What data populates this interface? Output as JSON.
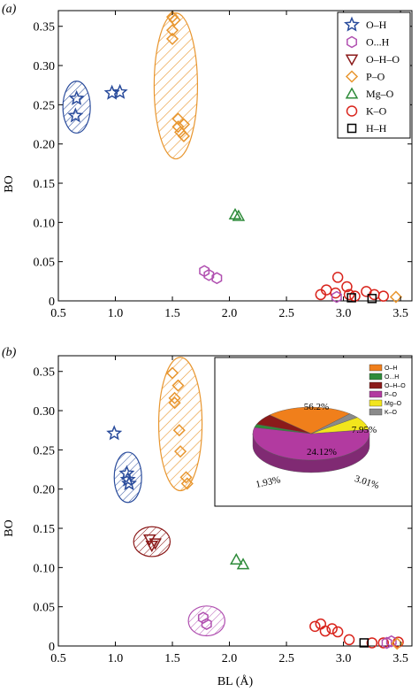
{
  "figure": {
    "colors": {
      "O–H": "#2a4c9c",
      "O...H": "#b04fb0",
      "O–H–O": "#8b1a1a",
      "P–O": "#e8962f",
      "Mg–O": "#2e8b3a",
      "K–O": "#d9241c",
      "H–H": "#000000"
    }
  },
  "chart_data": [
    {
      "panel_label": "(a)",
      "type": "scatter",
      "xlabel": "",
      "ylabel": "BO",
      "xlim": [
        0.5,
        3.6
      ],
      "ylim": [
        0,
        0.37
      ],
      "xticks": [
        "0.5",
        "1.0",
        "1.5",
        "2.0",
        "2.5",
        "3.0",
        "3.5"
      ],
      "yticks": [
        "0",
        "0.05",
        "0.10",
        "0.15",
        "0.20",
        "0.25",
        "0.30",
        "0.35"
      ],
      "legend": {
        "position": "top-right",
        "entries": [
          {
            "label": "O–H",
            "marker": "star"
          },
          {
            "label": "O...H",
            "marker": "hexagon"
          },
          {
            "label": "O–H–O",
            "marker": "triangle-down"
          },
          {
            "label": "P–O",
            "marker": "diamond"
          },
          {
            "label": "Mg–O",
            "marker": "triangle-up"
          },
          {
            "label": "K–O",
            "marker": "circle"
          },
          {
            "label": "H–H",
            "marker": "square"
          }
        ]
      },
      "series": [
        {
          "name": "O–H",
          "marker": "star",
          "points": [
            [
              0.66,
              0.258
            ],
            [
              0.65,
              0.236
            ],
            [
              0.97,
              0.265
            ],
            [
              1.04,
              0.266
            ]
          ]
        },
        {
          "name": "P–O",
          "marker": "diamond",
          "points": [
            [
              1.5,
              0.362
            ],
            [
              1.52,
              0.358
            ],
            [
              1.5,
              0.345
            ],
            [
              1.5,
              0.334
            ],
            [
              1.55,
              0.232
            ],
            [
              1.55,
              0.222
            ],
            [
              1.6,
              0.225
            ],
            [
              1.57,
              0.215
            ],
            [
              1.6,
              0.21
            ]
          ]
        },
        {
          "name": "Mg–O",
          "marker": "triangle-up",
          "points": [
            [
              2.05,
              0.11
            ],
            [
              2.08,
              0.108
            ]
          ]
        },
        {
          "name": "O...H",
          "marker": "hexagon",
          "points": [
            [
              1.78,
              0.038
            ],
            [
              1.82,
              0.033
            ],
            [
              1.89,
              0.029
            ]
          ]
        },
        {
          "name": "K–O",
          "marker": "circle",
          "points": [
            [
              2.8,
              0.008
            ],
            [
              2.85,
              0.014
            ],
            [
              2.95,
              0.03
            ],
            [
              2.93,
              0.01
            ],
            [
              3.03,
              0.018
            ],
            [
              3.05,
              0.008
            ],
            [
              3.2,
              0.012
            ],
            [
              3.27,
              0.008
            ],
            [
              3.35,
              0.006
            ],
            [
              3.1,
              0.006
            ]
          ]
        },
        {
          "name": "H–H",
          "marker": "square",
          "points": [
            [
              3.07,
              0.004
            ],
            [
              3.25,
              0.003
            ]
          ]
        },
        {
          "name": "P–O",
          "marker": "diamond",
          "points": [
            [
              3.46,
              0.005
            ]
          ]
        },
        {
          "name": "O...H",
          "marker": "hexagon",
          "points": [
            [
              2.94,
              0.005
            ]
          ]
        }
      ],
      "ellipses": [
        {
          "series": "O–H",
          "cx": 0.66,
          "cy": 0.247,
          "rx": 0.12,
          "ry": 0.033
        },
        {
          "series": "P–O",
          "cx": 1.53,
          "cy": 0.274,
          "rx": 0.19,
          "ry": 0.093
        }
      ]
    },
    {
      "panel_label": "(b)",
      "type": "scatter",
      "xlabel": "BL (Å)",
      "ylabel": "BO",
      "xlim": [
        0.5,
        3.6
      ],
      "ylim": [
        0,
        0.37
      ],
      "xticks": [
        "0.5",
        "1.0",
        "1.5",
        "2.0",
        "2.5",
        "3.0",
        "3.5"
      ],
      "yticks": [
        "0",
        "0.05",
        "0.10",
        "0.15",
        "0.20",
        "0.25",
        "0.30",
        "0.35"
      ],
      "series": [
        {
          "name": "O–H",
          "marker": "star",
          "points": [
            [
              0.99,
              0.271
            ],
            [
              1.1,
              0.22
            ],
            [
              1.12,
              0.207
            ],
            [
              1.11,
              0.212
            ]
          ]
        },
        {
          "name": "O–H–O",
          "marker": "triangle-down",
          "points": [
            [
              1.3,
              0.136
            ],
            [
              1.35,
              0.131
            ],
            [
              1.32,
              0.128
            ]
          ]
        },
        {
          "name": "P–O",
          "marker": "diamond",
          "points": [
            [
              1.5,
              0.348
            ],
            [
              1.55,
              0.332
            ],
            [
              1.52,
              0.316
            ],
            [
              1.52,
              0.31
            ],
            [
              1.56,
              0.275
            ],
            [
              1.57,
              0.248
            ],
            [
              1.62,
              0.215
            ],
            [
              1.63,
              0.207
            ]
          ]
        },
        {
          "name": "Mg–O",
          "marker": "triangle-up",
          "points": [
            [
              2.06,
              0.11
            ],
            [
              2.12,
              0.104
            ]
          ]
        },
        {
          "name": "O...H",
          "marker": "hexagon",
          "points": [
            [
              1.77,
              0.036
            ],
            [
              1.8,
              0.028
            ]
          ]
        },
        {
          "name": "K–O",
          "marker": "circle",
          "points": [
            [
              2.75,
              0.025
            ],
            [
              2.8,
              0.028
            ],
            [
              2.84,
              0.019
            ],
            [
              2.9,
              0.022
            ],
            [
              2.95,
              0.018
            ],
            [
              3.05,
              0.008
            ],
            [
              3.25,
              0.004
            ],
            [
              3.35,
              0.004
            ],
            [
              3.48,
              0.005
            ]
          ]
        },
        {
          "name": "H–H",
          "marker": "square",
          "points": [
            [
              3.18,
              0.004
            ]
          ]
        },
        {
          "name": "O...H",
          "marker": "hexagon",
          "points": [
            [
              3.38,
              0.004
            ],
            [
              3.42,
              0.006
            ]
          ]
        },
        {
          "name": "P–O",
          "marker": "diamond",
          "points": [
            [
              3.47,
              0.003
            ]
          ]
        }
      ],
      "ellipses": [
        {
          "series": "O–H",
          "cx": 1.11,
          "cy": 0.215,
          "rx": 0.12,
          "ry": 0.032
        },
        {
          "series": "O–H–O",
          "cx": 1.32,
          "cy": 0.133,
          "rx": 0.16,
          "ry": 0.019
        },
        {
          "series": "P–O",
          "cx": 1.57,
          "cy": 0.283,
          "rx": 0.19,
          "ry": 0.085
        },
        {
          "series": "O...H",
          "cx": 1.8,
          "cy": 0.032,
          "rx": 0.16,
          "ry": 0.019
        }
      ]
    },
    {
      "panel_label": "",
      "type": "pie",
      "legend": [
        "O–H",
        "O...H",
        "O–H–O",
        "P–O",
        "Mg–O",
        "K–O"
      ],
      "legend_colors": [
        "#f07f1b",
        "#2e8b3a",
        "#8b1a1a",
        "#b23aa0",
        "#f2e51c",
        "#8a8a8a"
      ],
      "slices": [
        {
          "label": "O–H",
          "value": 24.12
        },
        {
          "label": "O...H",
          "value": 1.93
        },
        {
          "label": "O–H–O",
          "value": 6.73
        },
        {
          "label": "P–O",
          "value": 56.2
        },
        {
          "label": "Mg–O",
          "value": 7.95
        },
        {
          "label": "K–O",
          "value": 3.01
        }
      ],
      "labels_shown": [
        "56.2%",
        "24.12%",
        "7.95%",
        "1.93%",
        "3.01%"
      ]
    }
  ]
}
